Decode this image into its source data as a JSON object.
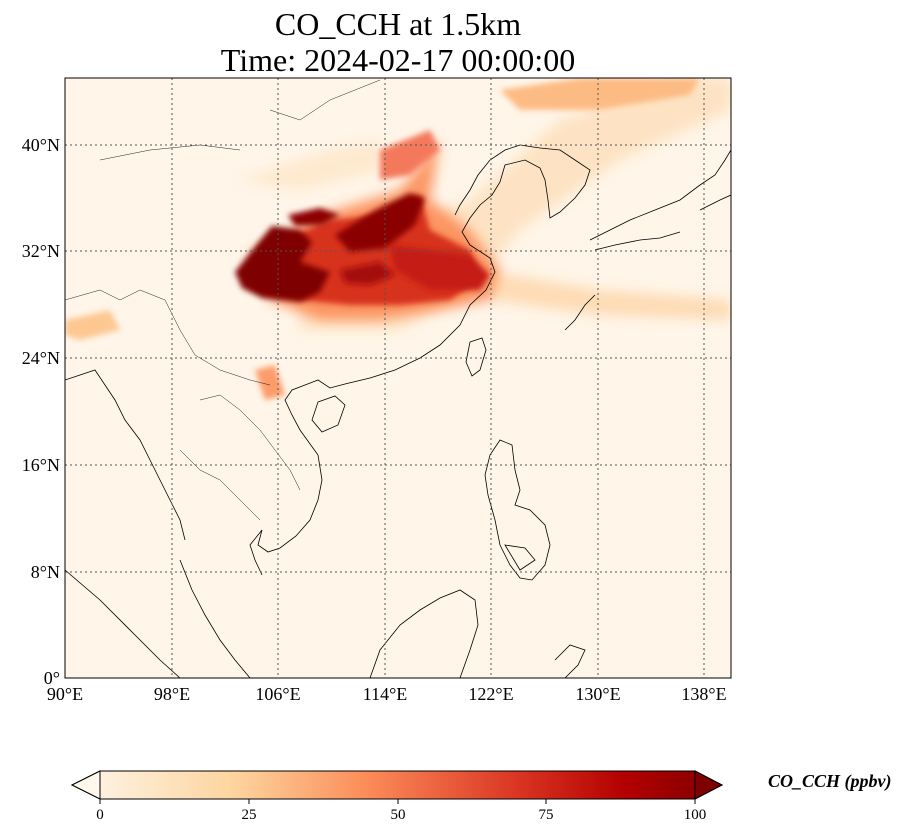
{
  "title": "CO_CCH at 1.5km",
  "subtitle": "Time: 2024-02-17 00:00:00",
  "map": {
    "extent": {
      "lon": [
        90,
        140
      ],
      "lat": [
        0,
        45
      ]
    },
    "gridlines": "dotted",
    "lat_ticks": [
      "0°",
      "8°N",
      "16°N",
      "24°N",
      "32°N",
      "40°N"
    ],
    "lon_ticks": [
      "90°E",
      "98°E",
      "106°E",
      "114°E",
      "122°E",
      "130°E",
      "138°E"
    ],
    "colormap": "OrRd",
    "colors": {
      "low": "#fff7ec",
      "mid": "#fdbb84",
      "high": "#d7301f",
      "max": "#7f0000",
      "coast": "#000000"
    }
  },
  "colorbar": {
    "label": "CO_CCH (ppbv)",
    "ticks": [
      "0",
      "25",
      "50",
      "75",
      "100"
    ],
    "range": [
      0,
      100
    ],
    "extend": "both"
  }
}
